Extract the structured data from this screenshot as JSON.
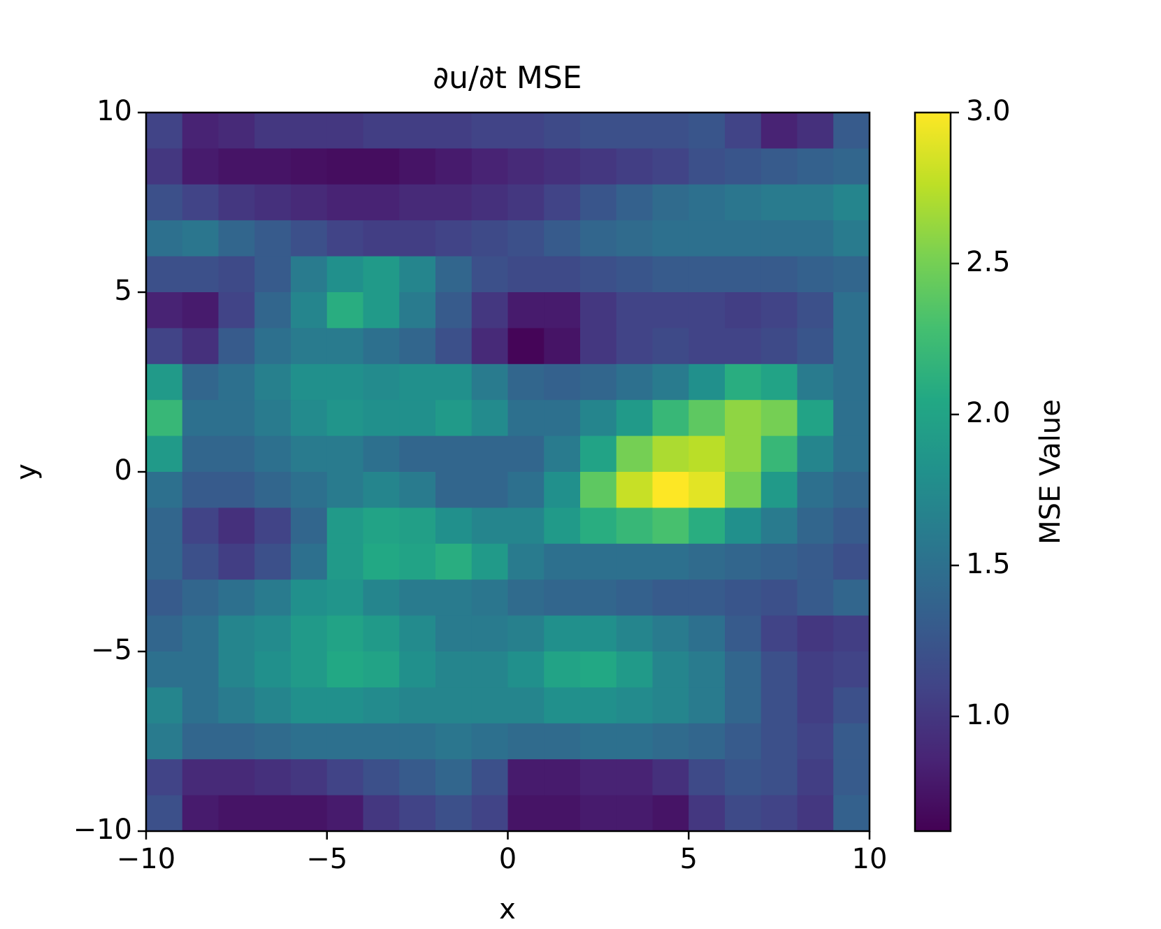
{
  "chart_data": {
    "type": "heatmap",
    "title": "∂u/∂t MSE",
    "x_label": "x",
    "y_label": "y",
    "colorbar_label": "MSE Value",
    "colormap": "viridis",
    "xlim": [
      -10,
      10
    ],
    "ylim": [
      -10,
      10
    ],
    "xticks": [
      {
        "value": -10,
        "label": "−10"
      },
      {
        "value": -5,
        "label": "−5"
      },
      0,
      5,
      10
    ],
    "yticks": [
      {
        "value": -10,
        "label": "−10"
      },
      {
        "value": -5,
        "label": "−5"
      },
      0,
      5,
      10
    ],
    "clim": [
      0.62,
      3.0
    ],
    "cticks": [
      {
        "value": 1,
        "label": "1.0"
      },
      1.5,
      {
        "value": 2,
        "label": "2.0"
      },
      2.5,
      {
        "value": 3,
        "label": "3.0"
      }
    ],
    "x": [
      -9.5,
      -8.5,
      -7.5,
      -6.5,
      -5.5,
      -4.5,
      -3.5,
      -2.5,
      -1.5,
      -0.5,
      0.5,
      1.5,
      2.5,
      3.5,
      4.5,
      5.5,
      6.5,
      7.5,
      8.5,
      9.5
    ],
    "y": [
      9.5,
      8.5,
      7.5,
      6.5,
      5.5,
      4.5,
      3.5,
      2.5,
      1.5,
      0.5,
      -0.5,
      -1.5,
      -2.5,
      -3.5,
      -4.5,
      -5.5,
      -6.5,
      -7.5,
      -8.5,
      -9.5
    ],
    "values": [
      [
        1.1,
        0.85,
        0.9,
        1.0,
        1.0,
        1.0,
        1.05,
        1.05,
        1.05,
        1.1,
        1.1,
        1.15,
        1.2,
        1.2,
        1.2,
        1.25,
        1.1,
        0.85,
        0.95,
        1.3
      ],
      [
        1.0,
        0.8,
        0.75,
        0.75,
        0.72,
        0.7,
        0.7,
        0.75,
        0.8,
        0.85,
        0.9,
        0.95,
        1.0,
        1.05,
        1.1,
        1.2,
        1.25,
        1.3,
        1.35,
        1.4
      ],
      [
        1.2,
        1.1,
        1.0,
        0.95,
        0.9,
        0.85,
        0.85,
        0.9,
        0.9,
        0.95,
        1.0,
        1.1,
        1.25,
        1.35,
        1.45,
        1.5,
        1.55,
        1.6,
        1.6,
        1.7
      ],
      [
        1.5,
        1.55,
        1.4,
        1.3,
        1.2,
        1.1,
        1.05,
        1.05,
        1.1,
        1.15,
        1.2,
        1.3,
        1.4,
        1.45,
        1.5,
        1.5,
        1.5,
        1.5,
        1.5,
        1.6
      ],
      [
        1.2,
        1.2,
        1.15,
        1.3,
        1.6,
        1.8,
        1.9,
        1.7,
        1.4,
        1.2,
        1.15,
        1.15,
        1.2,
        1.25,
        1.3,
        1.3,
        1.3,
        1.3,
        1.35,
        1.4
      ],
      [
        0.85,
        0.8,
        1.1,
        1.4,
        1.7,
        2.1,
        1.9,
        1.6,
        1.3,
        1.0,
        0.8,
        0.8,
        1.0,
        1.1,
        1.1,
        1.1,
        1.05,
        1.1,
        1.2,
        1.5
      ],
      [
        1.1,
        0.95,
        1.3,
        1.5,
        1.6,
        1.6,
        1.5,
        1.4,
        1.2,
        0.9,
        0.65,
        0.75,
        1.0,
        1.1,
        1.15,
        1.1,
        1.1,
        1.15,
        1.25,
        1.5
      ],
      [
        1.9,
        1.4,
        1.5,
        1.65,
        1.8,
        1.8,
        1.75,
        1.8,
        1.8,
        1.6,
        1.4,
        1.35,
        1.4,
        1.5,
        1.6,
        1.8,
        2.1,
        2.0,
        1.6,
        1.5
      ],
      [
        2.2,
        1.5,
        1.5,
        1.6,
        1.75,
        1.85,
        1.8,
        1.8,
        1.9,
        1.75,
        1.5,
        1.5,
        1.7,
        1.9,
        2.2,
        2.4,
        2.6,
        2.5,
        2.0,
        1.5
      ],
      [
        1.9,
        1.4,
        1.4,
        1.5,
        1.6,
        1.6,
        1.5,
        1.4,
        1.4,
        1.4,
        1.4,
        1.6,
        2.0,
        2.5,
        2.7,
        2.75,
        2.6,
        2.2,
        1.7,
        1.5
      ],
      [
        1.5,
        1.3,
        1.3,
        1.4,
        1.5,
        1.6,
        1.7,
        1.6,
        1.4,
        1.4,
        1.5,
        1.8,
        2.4,
        2.8,
        3.0,
        2.9,
        2.5,
        1.9,
        1.5,
        1.4
      ],
      [
        1.4,
        1.1,
        0.95,
        1.1,
        1.4,
        1.9,
        2.0,
        1.95,
        1.8,
        1.7,
        1.7,
        1.9,
        2.1,
        2.2,
        2.3,
        2.1,
        1.8,
        1.6,
        1.4,
        1.3
      ],
      [
        1.4,
        1.2,
        1.05,
        1.2,
        1.5,
        1.9,
        2.05,
        2.0,
        2.1,
        1.9,
        1.6,
        1.5,
        1.5,
        1.5,
        1.5,
        1.45,
        1.4,
        1.35,
        1.3,
        1.2
      ],
      [
        1.3,
        1.4,
        1.5,
        1.6,
        1.8,
        1.85,
        1.7,
        1.6,
        1.6,
        1.55,
        1.45,
        1.4,
        1.4,
        1.35,
        1.3,
        1.3,
        1.25,
        1.2,
        1.3,
        1.4
      ],
      [
        1.4,
        1.5,
        1.7,
        1.75,
        1.9,
        2.0,
        1.9,
        1.75,
        1.6,
        1.6,
        1.65,
        1.8,
        1.8,
        1.7,
        1.6,
        1.5,
        1.3,
        1.1,
        1.0,
        1.05
      ],
      [
        1.5,
        1.5,
        1.7,
        1.8,
        1.9,
        2.05,
        2.0,
        1.8,
        1.7,
        1.7,
        1.8,
        2.0,
        2.05,
        1.9,
        1.7,
        1.6,
        1.4,
        1.2,
        1.05,
        1.1
      ],
      [
        1.7,
        1.5,
        1.6,
        1.7,
        1.8,
        1.8,
        1.75,
        1.7,
        1.7,
        1.7,
        1.7,
        1.8,
        1.8,
        1.75,
        1.7,
        1.6,
        1.4,
        1.2,
        1.05,
        1.2
      ],
      [
        1.6,
        1.4,
        1.4,
        1.45,
        1.5,
        1.5,
        1.5,
        1.5,
        1.55,
        1.5,
        1.45,
        1.45,
        1.5,
        1.5,
        1.45,
        1.4,
        1.3,
        1.2,
        1.1,
        1.3
      ],
      [
        1.1,
        0.9,
        0.9,
        0.95,
        1.0,
        1.1,
        1.2,
        1.3,
        1.4,
        1.2,
        0.8,
        0.8,
        0.85,
        0.85,
        0.95,
        1.15,
        1.25,
        1.2,
        1.05,
        1.3
      ],
      [
        1.2,
        0.8,
        0.75,
        0.75,
        0.75,
        0.8,
        1.0,
        1.1,
        1.2,
        1.1,
        0.75,
        0.75,
        0.8,
        0.8,
        0.75,
        1.0,
        1.15,
        1.1,
        1.0,
        1.35
      ]
    ]
  }
}
